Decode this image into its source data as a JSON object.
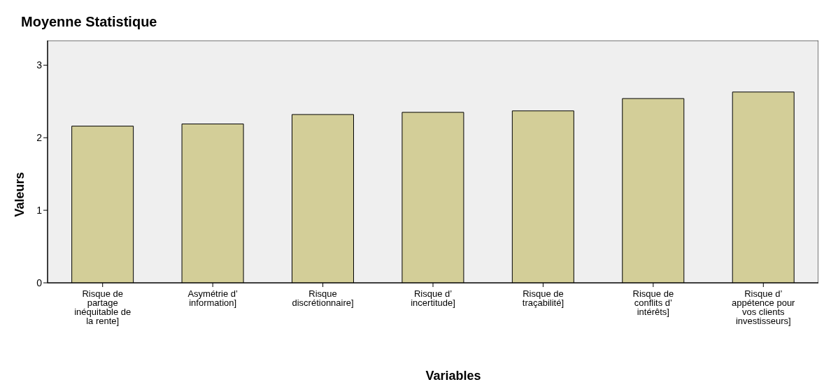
{
  "chart_data": {
    "type": "bar",
    "title": "Moyenne Statistique",
    "xlabel": "Variables",
    "ylabel": "Valeurs",
    "categories": [
      "Risque de partage inéquitable de la rente]",
      "Asymétrie d’ information]",
      "Risque discrétionnaire]",
      "Risque d’ incertitude]",
      "Risque de traçabilité]",
      "Risque de conflits d’ intérêts]",
      "Risque d’ appétence pour vos clients investisseurs]"
    ],
    "values": [
      2.16,
      2.19,
      2.32,
      2.35,
      2.37,
      2.54,
      2.63
    ],
    "color": "#d3ce98",
    "ylim": [
      0,
      3.34
    ],
    "yticks": [
      0,
      1,
      2,
      3
    ],
    "grid": false,
    "legend": false
  }
}
